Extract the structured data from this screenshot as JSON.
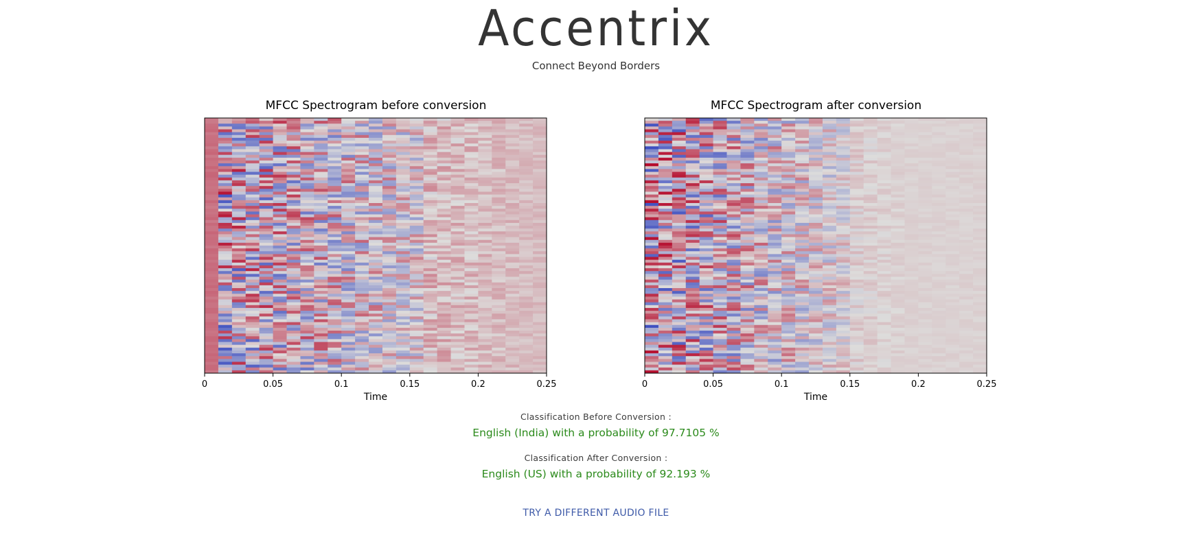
{
  "header": {
    "brand": "Accentrix",
    "tagline": "Connect Beyond Borders"
  },
  "chart_data": [
    {
      "type": "heatmap",
      "title": "MFCC Spectrogram before conversion",
      "xlabel": "Time",
      "ylabel": "",
      "xlim": [
        0,
        0.25
      ],
      "xticks": [
        "0",
        "0.05",
        "0.1",
        "0.15",
        "0.2",
        "0.25"
      ],
      "colormap": "coolwarm",
      "grid": false,
      "legend": "none"
    },
    {
      "type": "heatmap",
      "title": "MFCC Spectrogram after conversion",
      "xlabel": "Time",
      "ylabel": "",
      "xlim": [
        0,
        0.25
      ],
      "xticks": [
        "0",
        "0.05",
        "0.1",
        "0.15",
        "0.2",
        "0.25"
      ],
      "colormap": "coolwarm",
      "grid": false,
      "legend": "none"
    }
  ],
  "results": {
    "before_label": "Classification Before Conversion :",
    "before_value": "English (India) with a probability of 97.7105 %",
    "after_label": "Classification After Conversion :",
    "after_value": "English (US) with a probability of 92.193 %"
  },
  "actions": {
    "try_again": "TRY A DIFFERENT AUDIO FILE"
  },
  "colors": {
    "brand_text": "#343434",
    "result_green": "#2b8a1b",
    "link_blue": "#3e5aa8"
  }
}
